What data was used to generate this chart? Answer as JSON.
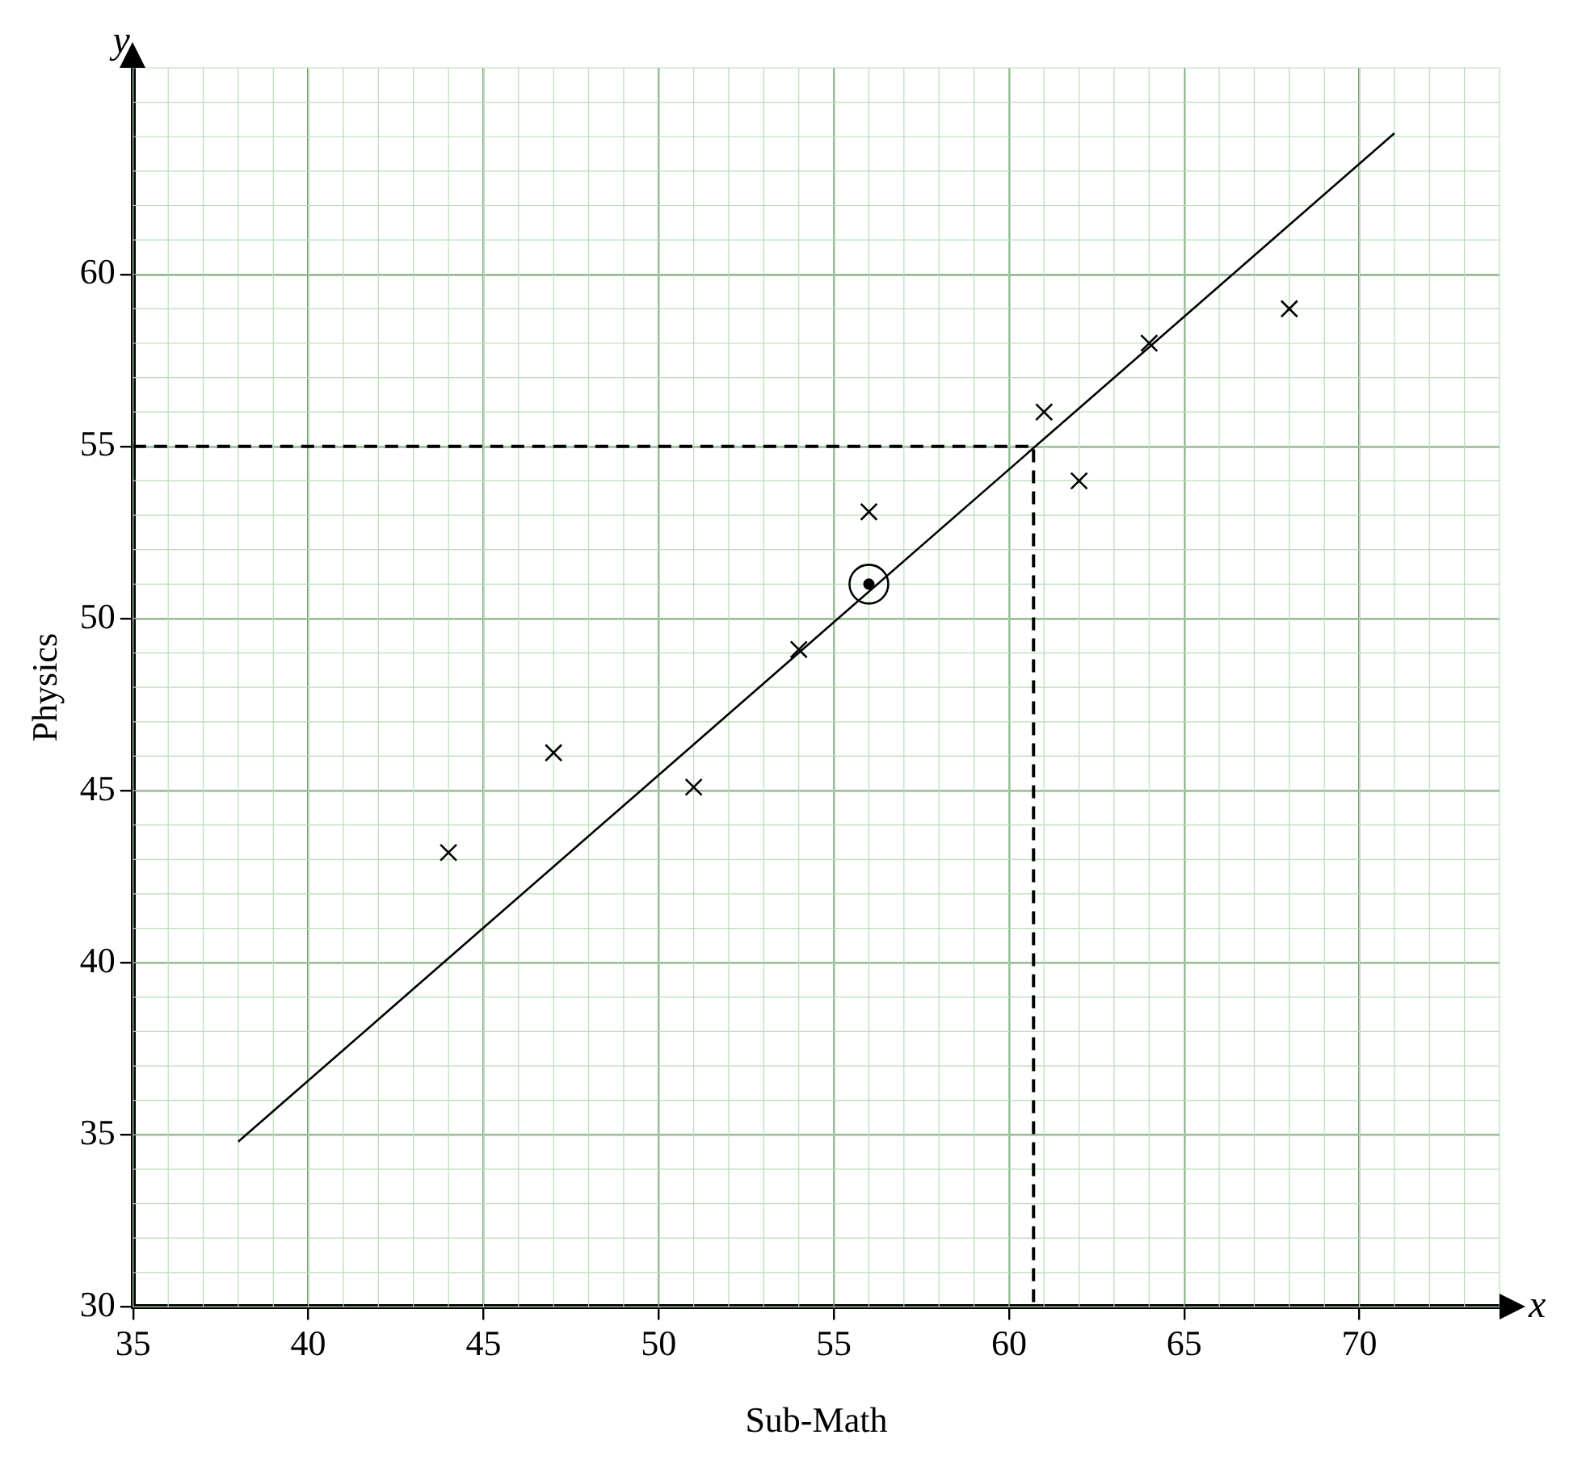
{
  "chart_data": {
    "type": "scatter",
    "xlabel": "Sub-Math",
    "ylabel": "Physics",
    "annotations": [
      "x",
      "y"
    ],
    "xlim": [
      35,
      74
    ],
    "ylim": [
      30,
      66
    ],
    "xticks": [
      35,
      40,
      45,
      50,
      55,
      60,
      65,
      70
    ],
    "yticks": [
      30,
      35,
      40,
      45,
      50,
      55,
      60
    ],
    "grid": true,
    "legend": false,
    "series": [
      {
        "marker": "cross",
        "color": "#000000",
        "x": [
          44,
          47,
          51,
          54,
          56,
          61,
          62,
          64,
          68
        ],
        "values": [
          43.2,
          46.1,
          45.1,
          49.1,
          53.1,
          56,
          54,
          58,
          59
        ]
      },
      {
        "type": "scatter",
        "marker": "circle",
        "color": "#000000",
        "x": [
          56
        ],
        "values": [
          51
        ]
      },
      {
        "type": "line",
        "marker": "none",
        "color": "#000000",
        "x": [
          38,
          71
        ],
        "values": [
          34.8,
          64.1
        ]
      },
      {
        "type": "line",
        "marker": "none",
        "line_style": "dashed",
        "color": "#000000",
        "x": [
          35,
          60.7,
          60.7
        ],
        "values": [
          55,
          55,
          30
        ]
      }
    ]
  }
}
